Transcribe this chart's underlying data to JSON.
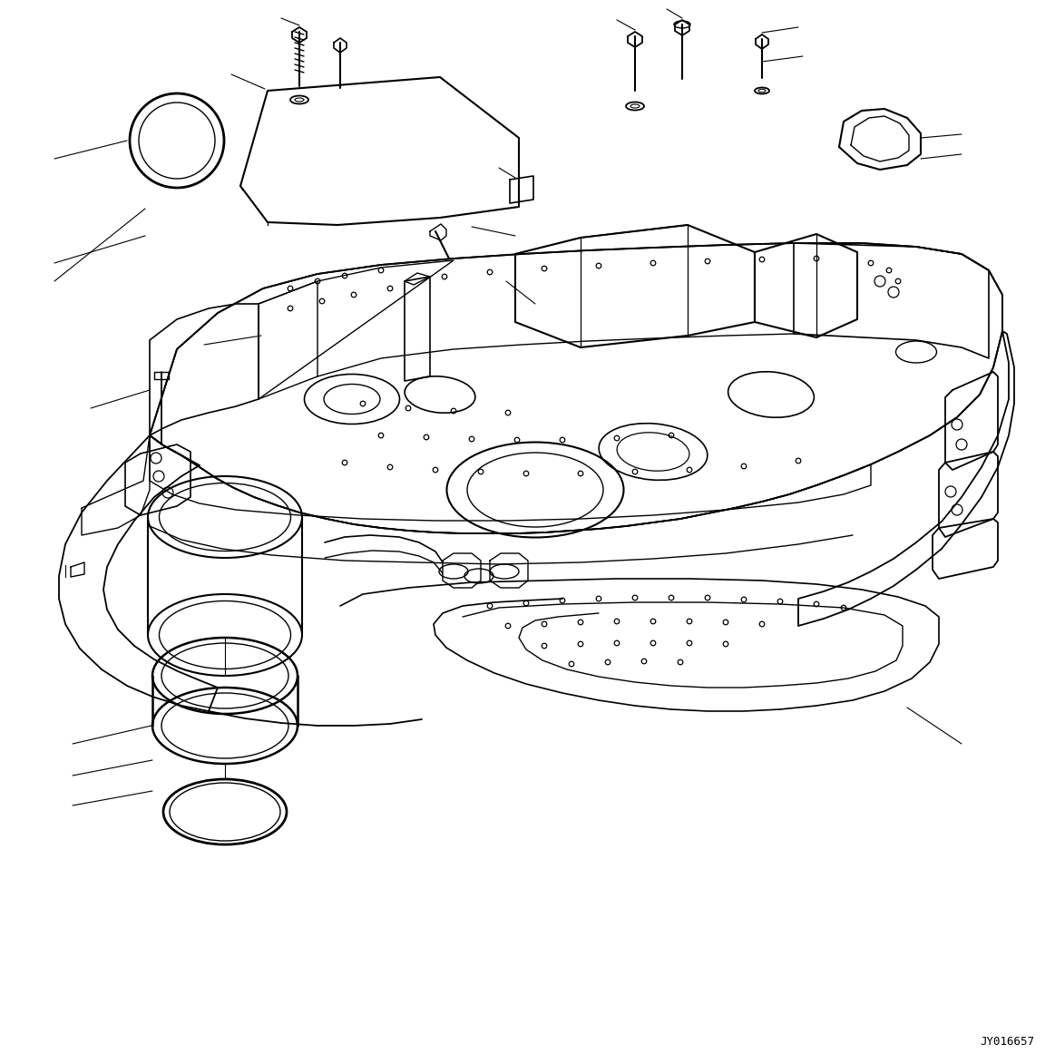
{
  "background_color": "#ffffff",
  "line_color": "#000000",
  "fig_width": 11.63,
  "fig_height": 11.73,
  "dpi": 100,
  "watermark_text": "JY016657",
  "watermark_fontsize": 9,
  "watermark_family": "monospace"
}
